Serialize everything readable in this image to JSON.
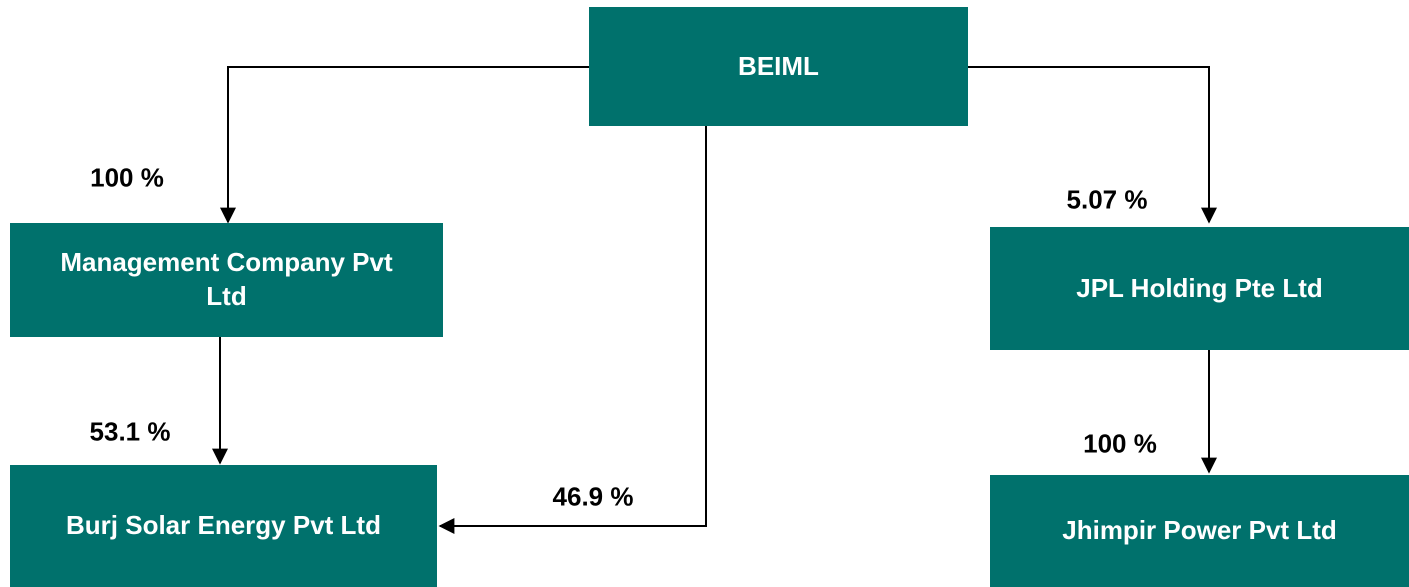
{
  "nodes": [
    {
      "label": "BEIML"
    },
    {
      "label": "Management Company Pvt Ltd"
    },
    {
      "label": "Burj Solar Energy Pvt Ltd"
    },
    {
      "label": "JPL Holding Pte Ltd"
    },
    {
      "label": "Jhimpir Power Pvt Ltd"
    }
  ],
  "edges": [
    {
      "label": "100 %"
    },
    {
      "label": "53.1 %"
    },
    {
      "label": "46.9 %"
    },
    {
      "label": "5.07 %"
    },
    {
      "label": "100 %"
    }
  ]
}
